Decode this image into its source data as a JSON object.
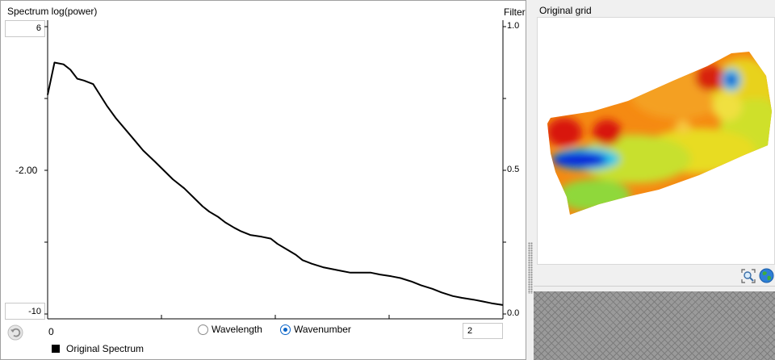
{
  "spectrum_panel": {
    "title": "Spectrum log(power)",
    "filter_title": "Filter",
    "y_max": "6",
    "y_mid": "-2.00",
    "y_min": "-10",
    "filter_ticks": [
      "1.0",
      "0.5",
      "0.0"
    ],
    "x_min": "0",
    "x_max": "2",
    "domain_options": [
      {
        "label": "Wavelength",
        "checked": false
      },
      {
        "label": "Wavenumber",
        "checked": true
      }
    ],
    "legend_label": "Original Spectrum",
    "legend_color": "#000000"
  },
  "chart_data": {
    "type": "line",
    "ylabel": "Spectrum log(power)",
    "y2label": "Filter",
    "xlim": [
      0,
      2
    ],
    "ylim": [
      -10,
      6
    ],
    "y2lim": [
      0.0,
      1.0
    ],
    "series": [
      {
        "name": "Original Spectrum",
        "x": [
          0.0,
          0.03,
          0.07,
          0.1,
          0.13,
          0.16,
          0.2,
          0.23,
          0.26,
          0.3,
          0.34,
          0.38,
          0.42,
          0.47,
          0.51,
          0.55,
          0.6,
          0.64,
          0.68,
          0.71,
          0.75,
          0.78,
          0.82,
          0.85,
          0.89,
          0.94,
          0.98,
          1.01,
          1.05,
          1.09,
          1.12,
          1.16,
          1.21,
          1.25,
          1.29,
          1.33,
          1.38,
          1.42,
          1.46,
          1.51,
          1.55,
          1.6,
          1.64,
          1.69,
          1.73,
          1.78,
          1.82,
          1.87,
          1.91,
          1.95,
          2.0
        ],
        "y": [
          2.2,
          4.0,
          3.9,
          3.6,
          3.1,
          3.0,
          2.8,
          2.2,
          1.6,
          0.9,
          0.3,
          -0.3,
          -0.9,
          -1.5,
          -2.0,
          -2.5,
          -3.0,
          -3.5,
          -4.0,
          -4.3,
          -4.6,
          -4.9,
          -5.2,
          -5.4,
          -5.6,
          -5.7,
          -5.8,
          -6.1,
          -6.4,
          -6.7,
          -7.0,
          -7.2,
          -7.4,
          -7.5,
          -7.6,
          -7.7,
          -7.7,
          -7.7,
          -7.8,
          -7.9,
          -8.0,
          -8.2,
          -8.4,
          -8.6,
          -8.8,
          -9.0,
          -9.1,
          -9.2,
          -9.3,
          -9.4,
          -9.5
        ]
      }
    ]
  },
  "grid_panel": {
    "title": "Original grid",
    "zoom_icon": "zoom-extents-icon",
    "globe_icon": "globe-icon"
  }
}
